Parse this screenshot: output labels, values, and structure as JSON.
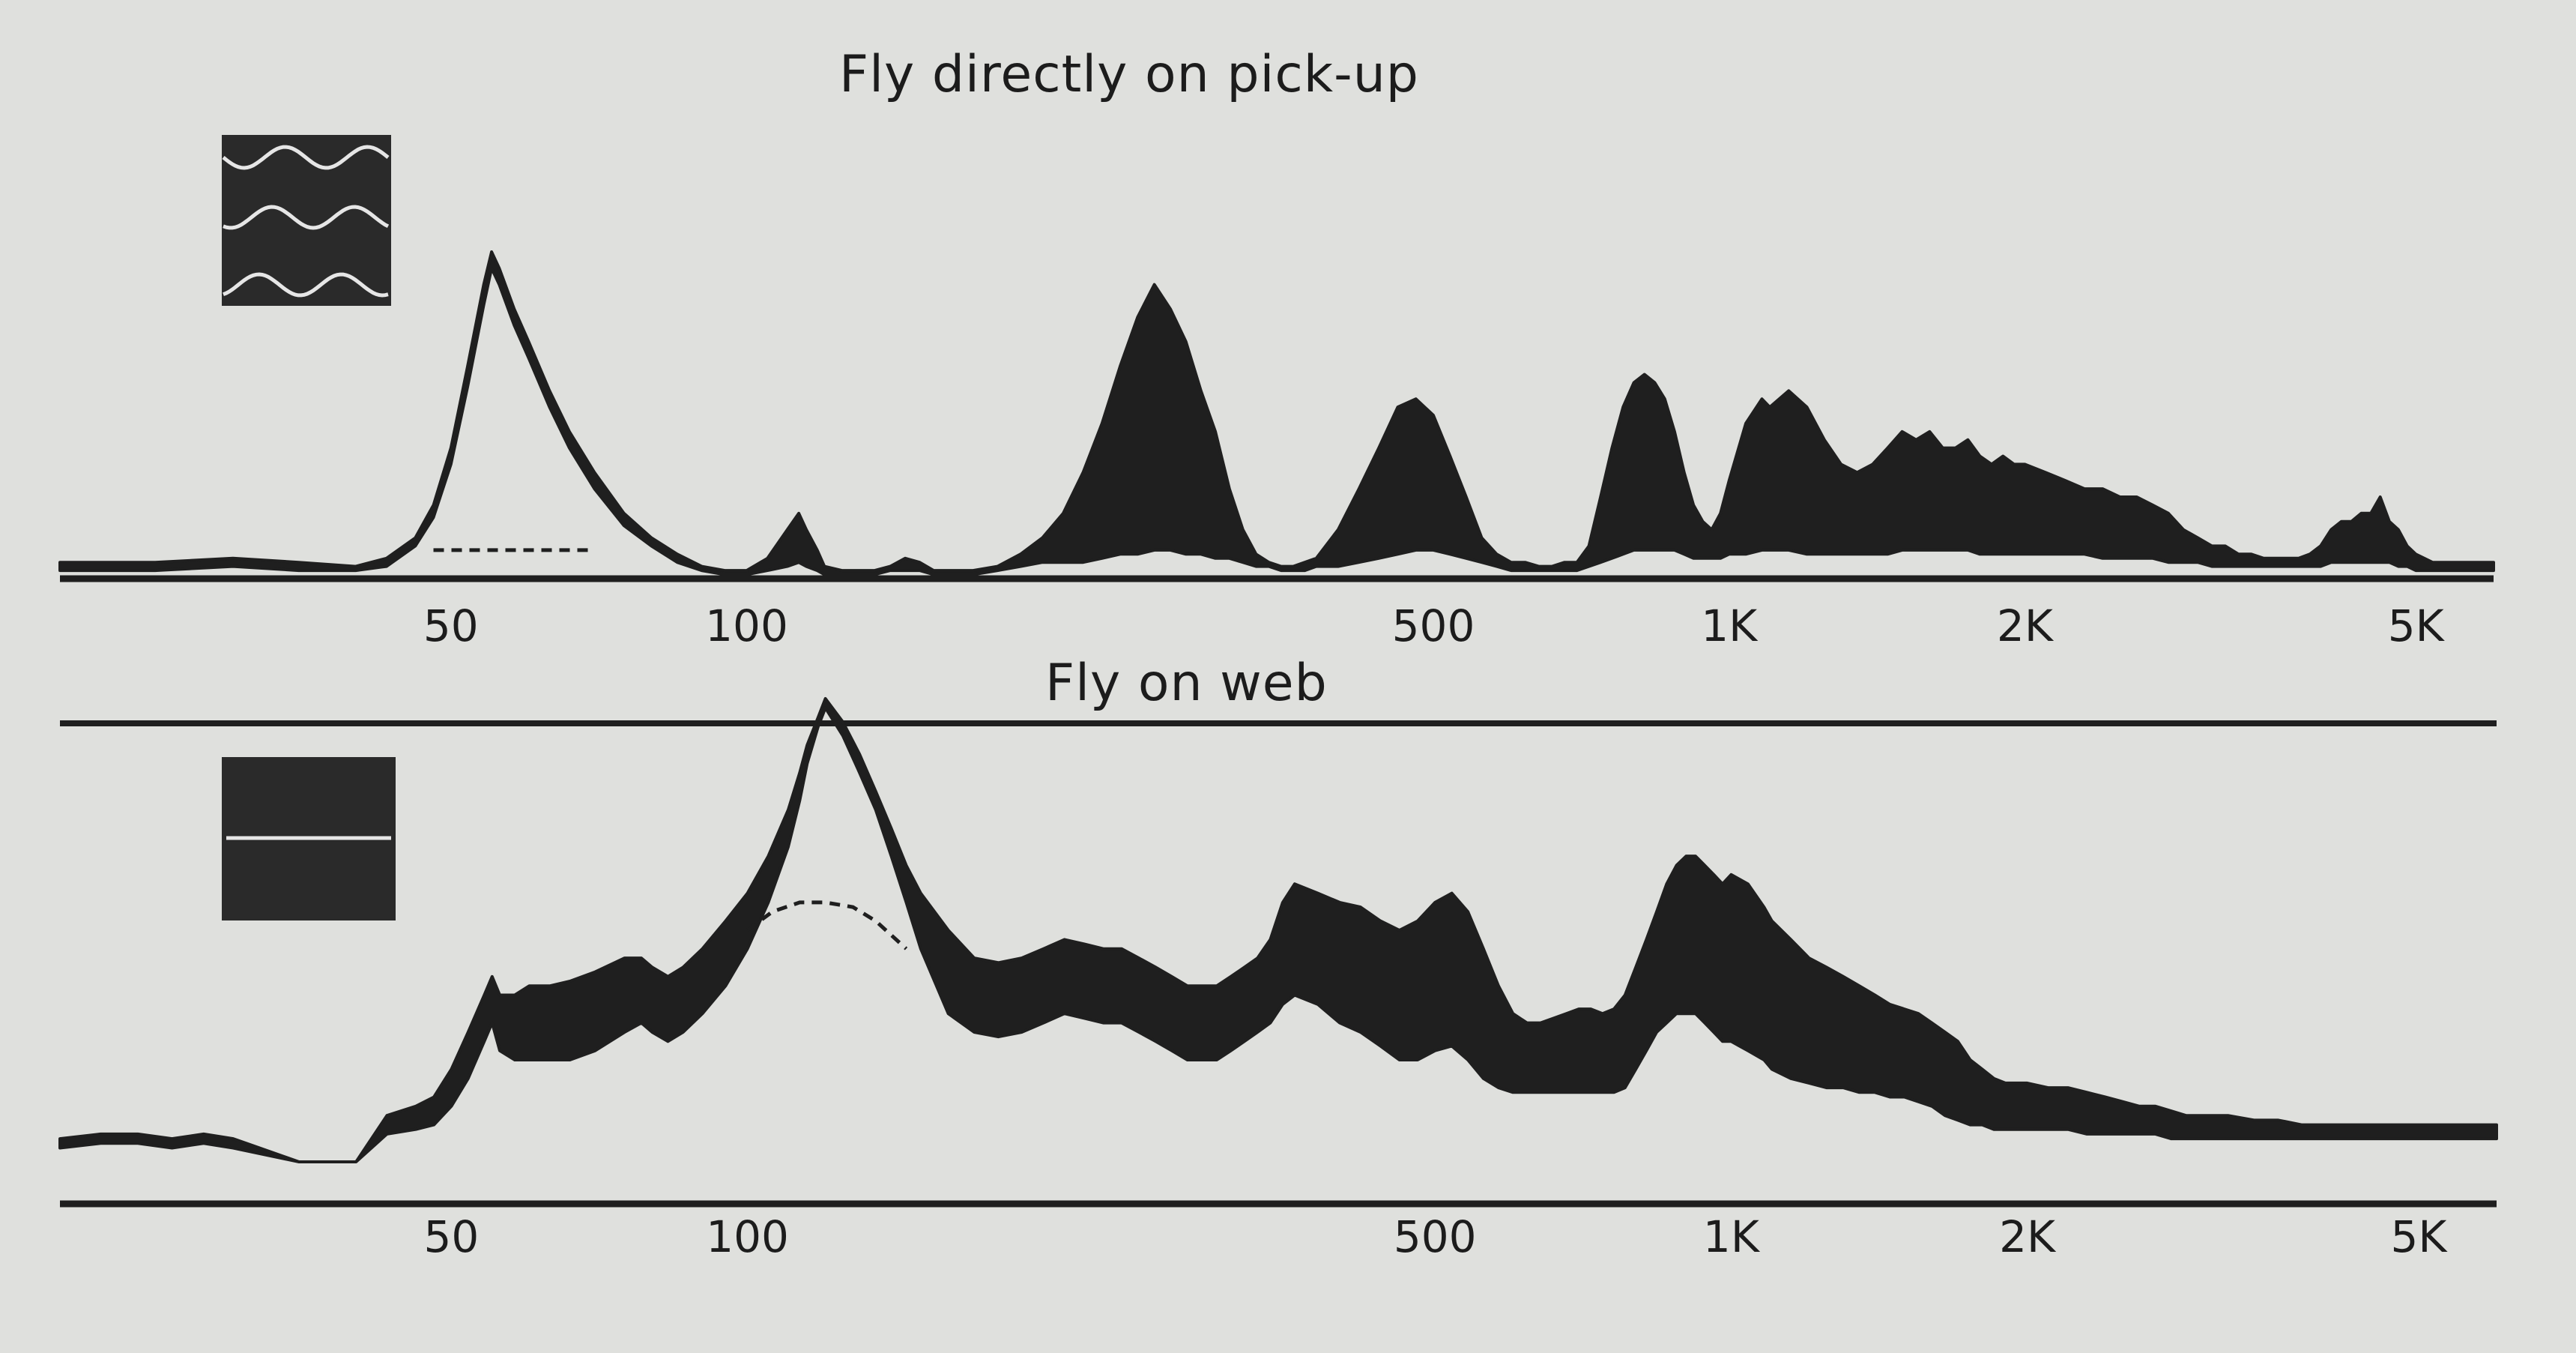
{
  "figure": {
    "background": "#dfe0dd",
    "ink": "#1f1f1f"
  },
  "chart_data": [
    {
      "type": "area",
      "title": "Fly directly on pick-up",
      "xlabel": "",
      "ylabel": "",
      "x_scale": "log",
      "xlim": [
        20,
        6000
      ],
      "ylim": [
        0,
        1
      ],
      "grid": false,
      "x_ticks": [
        50,
        100,
        500,
        1000,
        2000,
        5000
      ],
      "x_tick_labels": [
        "50",
        "100",
        "500",
        "1K",
        "2K",
        "5K"
      ],
      "series": [
        {
          "style": "envelope",
          "x": [
            20,
            25,
            30,
            35,
            40,
            43,
            46,
            48,
            50,
            52,
            54,
            55,
            56,
            58,
            60,
            63,
            66,
            70,
            75,
            80,
            85,
            90,
            95,
            100,
            105,
            110,
            113,
            115,
            118,
            120,
            125,
            130,
            135,
            140,
            145,
            150,
            155,
            160,
            165,
            170,
            180,
            190,
            200,
            210,
            220,
            230,
            240,
            250,
            260,
            270,
            280,
            290,
            300,
            310,
            320,
            330,
            340,
            350,
            360,
            370,
            380,
            400,
            420,
            440,
            460,
            480,
            500,
            520,
            540,
            560,
            580,
            600,
            620,
            640,
            660,
            680,
            700,
            720,
            740,
            760,
            780,
            800,
            820,
            840,
            860,
            880,
            900,
            920,
            940,
            960,
            980,
            1000,
            1040,
            1080,
            1100,
            1150,
            1200,
            1250,
            1300,
            1350,
            1400,
            1450,
            1500,
            1550,
            1600,
            1650,
            1700,
            1750,
            1800,
            1850,
            1900,
            1950,
            2000,
            2100,
            2200,
            2300,
            2400,
            2500,
            2600,
            2700,
            2800,
            2900,
            3000,
            3100,
            3200,
            3300,
            3400,
            3500,
            3600,
            3700,
            3800,
            3900,
            4000,
            4100,
            4200,
            4300,
            4400,
            4500,
            4600,
            4700,
            4800,
            4900,
            5000,
            5200,
            5400,
            5600,
            5800,
            6000
          ],
          "upper": [
            0.04,
            0.04,
            0.05,
            0.04,
            0.03,
            0.05,
            0.1,
            0.18,
            0.32,
            0.52,
            0.72,
            0.8,
            0.76,
            0.66,
            0.58,
            0.46,
            0.36,
            0.26,
            0.16,
            0.1,
            0.06,
            0.03,
            0.02,
            0.02,
            0.05,
            0.12,
            0.16,
            0.12,
            0.07,
            0.03,
            0.02,
            0.02,
            0.02,
            0.03,
            0.05,
            0.04,
            0.02,
            0.02,
            0.02,
            0.02,
            0.03,
            0.06,
            0.1,
            0.16,
            0.26,
            0.38,
            0.52,
            0.64,
            0.72,
            0.66,
            0.58,
            0.46,
            0.36,
            0.22,
            0.12,
            0.06,
            0.04,
            0.03,
            0.03,
            0.04,
            0.05,
            0.12,
            0.22,
            0.32,
            0.42,
            0.44,
            0.4,
            0.3,
            0.2,
            0.1,
            0.06,
            0.04,
            0.04,
            0.03,
            0.03,
            0.04,
            0.04,
            0.08,
            0.2,
            0.32,
            0.42,
            0.48,
            0.5,
            0.48,
            0.44,
            0.36,
            0.26,
            0.18,
            0.14,
            0.12,
            0.16,
            0.24,
            0.38,
            0.44,
            0.42,
            0.46,
            0.42,
            0.34,
            0.28,
            0.26,
            0.28,
            0.32,
            0.36,
            0.34,
            0.36,
            0.32,
            0.32,
            0.34,
            0.3,
            0.28,
            0.3,
            0.28,
            0.28,
            0.26,
            0.24,
            0.22,
            0.22,
            0.2,
            0.2,
            0.18,
            0.16,
            0.12,
            0.1,
            0.08,
            0.08,
            0.06,
            0.06,
            0.05,
            0.05,
            0.05,
            0.05,
            0.06,
            0.08,
            0.12,
            0.14,
            0.14,
            0.16,
            0.16,
            0.2,
            0.14,
            0.12,
            0.08,
            0.06,
            0.04,
            0.04,
            0.04,
            0.04,
            0.04
          ],
          "lower": [
            0.02,
            0.02,
            0.03,
            0.02,
            0.02,
            0.03,
            0.08,
            0.15,
            0.28,
            0.47,
            0.67,
            0.76,
            0.72,
            0.62,
            0.54,
            0.42,
            0.32,
            0.22,
            0.13,
            0.08,
            0.04,
            0.02,
            0.01,
            0.01,
            0.02,
            0.03,
            0.04,
            0.03,
            0.02,
            0.01,
            0.01,
            0.01,
            0.01,
            0.02,
            0.02,
            0.02,
            0.01,
            0.01,
            0.01,
            0.01,
            0.02,
            0.03,
            0.04,
            0.04,
            0.04,
            0.05,
            0.06,
            0.06,
            0.07,
            0.07,
            0.06,
            0.06,
            0.05,
            0.05,
            0.04,
            0.03,
            0.03,
            0.02,
            0.02,
            0.02,
            0.03,
            0.03,
            0.04,
            0.05,
            0.06,
            0.07,
            0.07,
            0.06,
            0.05,
            0.04,
            0.03,
            0.02,
            0.02,
            0.02,
            0.02,
            0.02,
            0.02,
            0.03,
            0.04,
            0.05,
            0.06,
            0.07,
            0.07,
            0.07,
            0.07,
            0.07,
            0.06,
            0.05,
            0.05,
            0.05,
            0.05,
            0.06,
            0.06,
            0.07,
            0.07,
            0.07,
            0.06,
            0.06,
            0.06,
            0.06,
            0.06,
            0.06,
            0.07,
            0.07,
            0.07,
            0.07,
            0.07,
            0.07,
            0.06,
            0.06,
            0.06,
            0.06,
            0.06,
            0.06,
            0.06,
            0.06,
            0.05,
            0.05,
            0.05,
            0.05,
            0.04,
            0.04,
            0.04,
            0.03,
            0.03,
            0.03,
            0.03,
            0.03,
            0.03,
            0.03,
            0.03,
            0.03,
            0.03,
            0.04,
            0.04,
            0.04,
            0.04,
            0.04,
            0.04,
            0.04,
            0.03,
            0.03,
            0.02,
            0.02,
            0.02,
            0.02,
            0.02,
            0.02
          ]
        },
        {
          "style": "dashed",
          "x": [
            48,
            52,
            56,
            60,
            65,
            70
          ],
          "values": [
            0.07,
            0.07,
            0.07,
            0.07,
            0.07,
            0.07
          ]
        }
      ]
    },
    {
      "type": "area",
      "title": "Fly on web",
      "xlabel": "",
      "ylabel": "",
      "x_scale": "log",
      "xlim": [
        20,
        6000
      ],
      "ylim": [
        0,
        1
      ],
      "grid": false,
      "x_ticks": [
        50,
        100,
        500,
        1000,
        2000,
        5000
      ],
      "x_tick_labels": [
        "50",
        "100",
        "500",
        "1K",
        "2K",
        "5K"
      ],
      "series": [
        {
          "style": "envelope",
          "x": [
            20,
            22,
            24,
            26,
            28,
            30,
            35,
            40,
            43,
            46,
            48,
            50,
            52,
            54,
            55,
            56,
            58,
            60,
            63,
            66,
            70,
            75,
            78,
            80,
            83,
            86,
            90,
            95,
            100,
            105,
            110,
            113,
            115,
            118,
            120,
            125,
            130,
            135,
            140,
            145,
            150,
            160,
            170,
            180,
            190,
            200,
            210,
            220,
            230,
            240,
            250,
            260,
            270,
            280,
            290,
            300,
            310,
            320,
            330,
            340,
            350,
            360,
            380,
            400,
            420,
            440,
            460,
            480,
            500,
            520,
            540,
            560,
            580,
            600,
            620,
            640,
            660,
            680,
            700,
            720,
            740,
            760,
            780,
            800,
            820,
            840,
            860,
            880,
            900,
            920,
            940,
            960,
            980,
            1000,
            1040,
            1080,
            1100,
            1150,
            1200,
            1250,
            1300,
            1350,
            1400,
            1450,
            1500,
            1550,
            1600,
            1650,
            1700,
            1750,
            1800,
            1850,
            1900,
            1950,
            2000,
            2100,
            2200,
            2300,
            2400,
            2500,
            2600,
            2700,
            2800,
            2900,
            3000,
            3200,
            3400,
            3600,
            3800,
            4000,
            4200,
            4400,
            4600,
            4800,
            5000,
            5200,
            5400,
            5600,
            5800,
            6000
          ],
          "upper": [
            0.05,
            0.06,
            0.06,
            0.05,
            0.06,
            0.05,
            0.0,
            0.0,
            0.1,
            0.12,
            0.14,
            0.2,
            0.28,
            0.36,
            0.4,
            0.36,
            0.36,
            0.38,
            0.38,
            0.39,
            0.41,
            0.44,
            0.44,
            0.42,
            0.4,
            0.42,
            0.46,
            0.52,
            0.58,
            0.66,
            0.76,
            0.84,
            0.9,
            0.96,
            1.0,
            0.95,
            0.88,
            0.8,
            0.72,
            0.64,
            0.58,
            0.5,
            0.44,
            0.43,
            0.44,
            0.46,
            0.48,
            0.47,
            0.46,
            0.46,
            0.44,
            0.42,
            0.4,
            0.38,
            0.38,
            0.38,
            0.4,
            0.42,
            0.44,
            0.48,
            0.56,
            0.6,
            0.58,
            0.56,
            0.55,
            0.52,
            0.5,
            0.52,
            0.56,
            0.58,
            0.54,
            0.46,
            0.38,
            0.32,
            0.3,
            0.3,
            0.31,
            0.32,
            0.33,
            0.33,
            0.32,
            0.33,
            0.36,
            0.42,
            0.48,
            0.54,
            0.6,
            0.64,
            0.66,
            0.66,
            0.64,
            0.62,
            0.6,
            0.62,
            0.6,
            0.55,
            0.52,
            0.48,
            0.44,
            0.42,
            0.4,
            0.38,
            0.36,
            0.34,
            0.33,
            0.32,
            0.3,
            0.28,
            0.26,
            0.22,
            0.2,
            0.18,
            0.17,
            0.17,
            0.17,
            0.16,
            0.16,
            0.15,
            0.14,
            0.13,
            0.12,
            0.12,
            0.11,
            0.1,
            0.1,
            0.1,
            0.09,
            0.09,
            0.08,
            0.08,
            0.08,
            0.08,
            0.08,
            0.08,
            0.08,
            0.08,
            0.08,
            0.08,
            0.08,
            0.08
          ],
          "lower": [
            0.03,
            0.04,
            0.04,
            0.03,
            0.04,
            0.03,
            0.0,
            0.0,
            0.06,
            0.07,
            0.08,
            0.12,
            0.18,
            0.26,
            0.3,
            0.24,
            0.22,
            0.22,
            0.22,
            0.22,
            0.24,
            0.28,
            0.3,
            0.28,
            0.26,
            0.28,
            0.32,
            0.38,
            0.46,
            0.56,
            0.68,
            0.78,
            0.86,
            0.94,
            0.98,
            0.92,
            0.84,
            0.76,
            0.66,
            0.56,
            0.46,
            0.32,
            0.28,
            0.27,
            0.28,
            0.3,
            0.32,
            0.31,
            0.3,
            0.3,
            0.28,
            0.26,
            0.24,
            0.22,
            0.22,
            0.22,
            0.24,
            0.26,
            0.28,
            0.3,
            0.34,
            0.36,
            0.34,
            0.3,
            0.28,
            0.25,
            0.22,
            0.22,
            0.24,
            0.25,
            0.22,
            0.18,
            0.16,
            0.15,
            0.15,
            0.15,
            0.15,
            0.15,
            0.15,
            0.15,
            0.15,
            0.15,
            0.16,
            0.2,
            0.24,
            0.28,
            0.3,
            0.32,
            0.32,
            0.32,
            0.3,
            0.28,
            0.26,
            0.26,
            0.24,
            0.22,
            0.2,
            0.18,
            0.17,
            0.16,
            0.16,
            0.15,
            0.15,
            0.14,
            0.14,
            0.13,
            0.12,
            0.1,
            0.09,
            0.08,
            0.08,
            0.07,
            0.07,
            0.07,
            0.07,
            0.07,
            0.07,
            0.06,
            0.06,
            0.06,
            0.06,
            0.06,
            0.05,
            0.05,
            0.05,
            0.05,
            0.05,
            0.05,
            0.05,
            0.05,
            0.05,
            0.05,
            0.05,
            0.05,
            0.05,
            0.05,
            0.05,
            0.05,
            0.05,
            0.05
          ]
        },
        {
          "style": "dashed",
          "x": [
            100,
            106,
            113,
            120,
            128,
            135,
            145
          ],
          "values": [
            0.5,
            0.54,
            0.56,
            0.56,
            0.55,
            0.52,
            0.46
          ]
        }
      ]
    }
  ]
}
